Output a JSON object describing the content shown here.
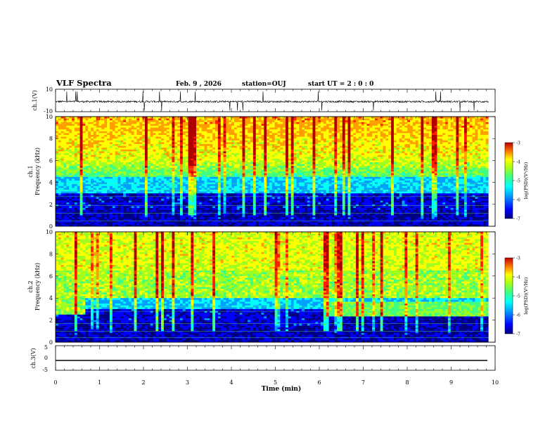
{
  "header": {
    "title": "VLF Spectra",
    "date": "Feb. 9 , 2026",
    "station": "station=OUJ",
    "start": "start UT =  2 : 0 : 0"
  },
  "colors": {
    "colormap": [
      "#000080",
      "#0000ff",
      "#00a0ff",
      "#00ffff",
      "#40ff80",
      "#a0ff20",
      "#ffff00",
      "#ffa000",
      "#ff2000",
      "#b00000"
    ],
    "trace": "#000000"
  },
  "chart_data": [
    {
      "type": "line",
      "name": "ch1-waveform",
      "ylabel": "ch.1(V)",
      "ylim": [
        -10,
        10
      ],
      "yticks": [
        "10",
        "-10"
      ],
      "x": [
        0,
        10
      ],
      "y_mean": -1.0,
      "note_values": "noisy trace around -1 V with spikes"
    },
    {
      "type": "heatmap",
      "name": "ch1-spectrogram",
      "ylabel": "ch.1\nFrequency (kHz)",
      "ylim": [
        0,
        10
      ],
      "yticks": [
        "0",
        "2",
        "4",
        "6",
        "8",
        "10"
      ],
      "xlim": [
        0,
        9.85
      ],
      "colorbar": {
        "label": "log(PSD)(V²/Hz)",
        "range": [
          -7,
          -3
        ],
        "ticks": [
          "-3",
          "-4",
          "-5",
          "-6",
          "-7"
        ]
      }
    },
    {
      "type": "heatmap",
      "name": "ch2-spectrogram",
      "ylabel": "ch.2\nFrequency (kHz)",
      "ylim": [
        0,
        10
      ],
      "yticks": [
        "0",
        "2",
        "4",
        "6",
        "8",
        "10"
      ],
      "xlim": [
        0,
        9.85
      ],
      "colorbar": {
        "label": "log(PSD)(V²/Hz)",
        "range": [
          -7,
          -3
        ],
        "ticks": [
          "-3",
          "-4",
          "-5",
          "-6",
          "-7"
        ]
      }
    },
    {
      "type": "line",
      "name": "ch3-trace",
      "ylabel": "ch.3(V)",
      "ylim": [
        -5,
        5
      ],
      "yticks": [
        "5",
        "0",
        "-5"
      ],
      "x": [
        0,
        9.85
      ],
      "y": [
        -2,
        -2
      ]
    }
  ],
  "xaxis": {
    "label": "Time (min)",
    "ticks": [
      "0",
      "1",
      "2",
      "3",
      "4",
      "5",
      "6",
      "7",
      "8",
      "9",
      "10"
    ],
    "range": [
      0,
      10
    ]
  },
  "colorbar1": {
    "label": "log(PSD)(V²/Hz)",
    "ticks": [
      "-3",
      "-4",
      "-5",
      "-6",
      "-7"
    ]
  },
  "colorbar2": {
    "label": "log(PSD)(V²/Hz)",
    "ticks": [
      "-3",
      "-4",
      "-5",
      "-6",
      "-7"
    ]
  }
}
